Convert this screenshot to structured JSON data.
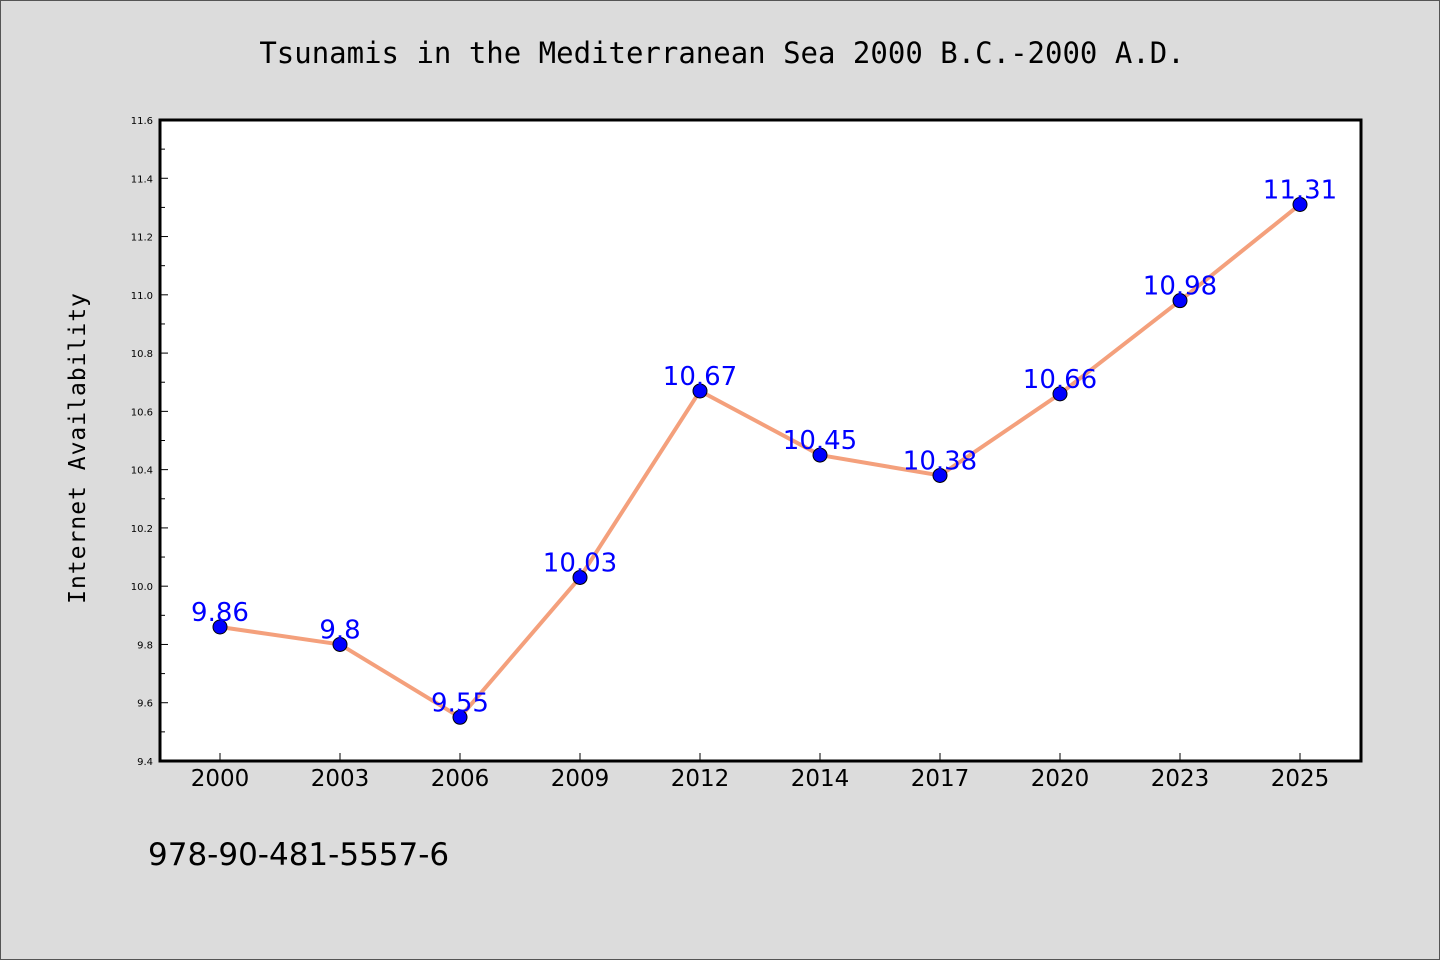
{
  "chart_data": {
    "type": "line",
    "title": "Tsunamis in the Mediterranean Sea 2000 B.C.-2000 A.D.",
    "xlabel": "",
    "ylabel": "Internet Availability",
    "categories": [
      "2000",
      "2003",
      "2006",
      "2009",
      "2012",
      "2014",
      "2017",
      "2020",
      "2023",
      "2025"
    ],
    "series": [
      {
        "values": [
          9.86,
          9.8,
          9.55,
          10.03,
          10.67,
          10.45,
          10.38,
          10.66,
          10.98,
          11.31
        ],
        "labels": [
          "9.86",
          "9.8",
          "9.55",
          "10.03",
          "10.67",
          "10.45",
          "10.38",
          "10.66",
          "10.98",
          "11.31"
        ]
      }
    ],
    "ylim": [
      9.4,
      11.6
    ],
    "yticks": [
      "9.4",
      "9.6",
      "9.8",
      "10.0",
      "10.2",
      "10.4",
      "10.6",
      "10.8",
      "11.0",
      "11.2",
      "11.4",
      "11.6"
    ],
    "grid": false,
    "legend": "none",
    "colors": {
      "line": "#f4a07c",
      "marker": "#0000ff",
      "data_label": "#0000ff",
      "plot_background": "#ffffff",
      "figure_background": "#dcdcdc"
    }
  },
  "footer": {
    "text": "978-90-481-5557-6"
  }
}
